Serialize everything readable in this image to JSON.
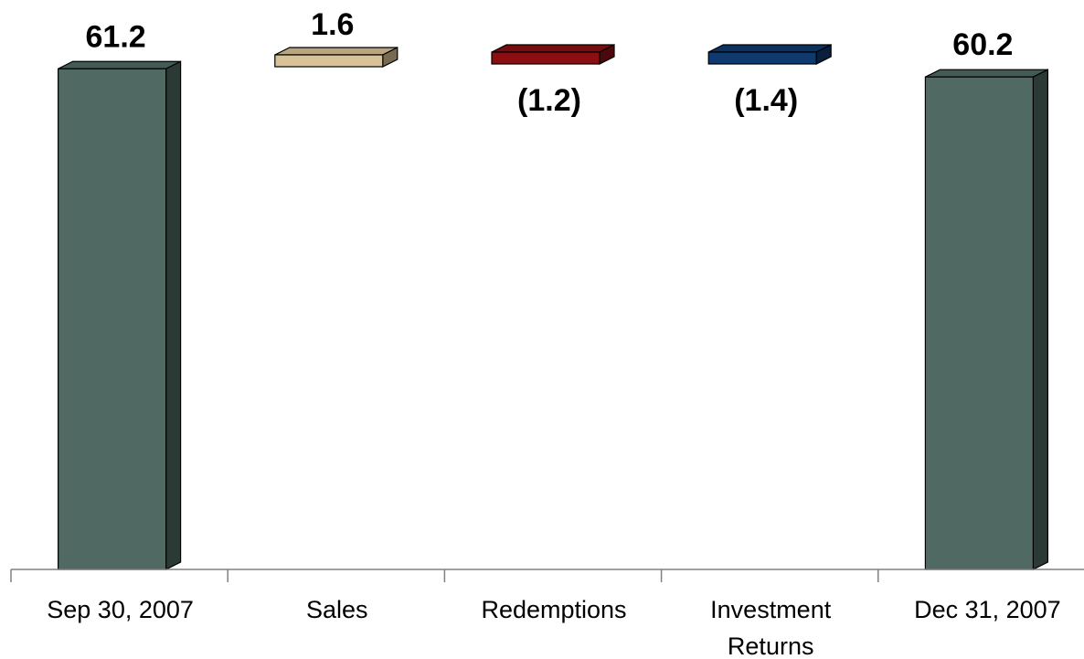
{
  "chart_data": {
    "type": "bar",
    "subtype": "waterfall",
    "categories": [
      [
        "Sep 30, 2007"
      ],
      [
        "Sales"
      ],
      [
        "Redemptions"
      ],
      [
        "Investment",
        "Returns"
      ],
      [
        "Dec 31, 2007"
      ]
    ],
    "values": [
      61.2,
      1.6,
      -1.2,
      -1.4,
      60.2
    ],
    "value_labels": [
      "61.2",
      "1.6",
      "(1.2)",
      "(1.4)",
      "60.2"
    ],
    "bar_kinds": [
      "total",
      "change",
      "change",
      "change",
      "total"
    ],
    "colors": {
      "total": "#506a63",
      "sales": "#d9c396",
      "redemptions": "#8b0f12",
      "investment_returns": "#0e3a6e"
    },
    "title": "",
    "xlabel": "",
    "ylabel": "",
    "grid": false,
    "legend": "none"
  }
}
